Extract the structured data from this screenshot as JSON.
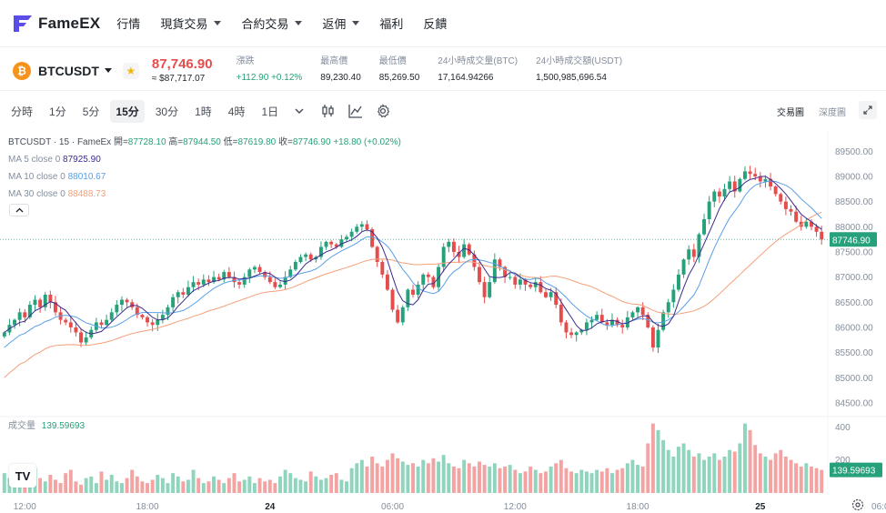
{
  "nav": {
    "logo": "FameEX",
    "items": [
      {
        "label": "行情",
        "dropdown": false
      },
      {
        "label": "現貨交易",
        "dropdown": true
      },
      {
        "label": "合約交易",
        "dropdown": true
      },
      {
        "label": "返佣",
        "dropdown": true
      },
      {
        "label": "福利",
        "dropdown": false
      },
      {
        "label": "反饋",
        "dropdown": false
      }
    ]
  },
  "ticker": {
    "coin_symbol": "₿",
    "pair": "BTCUSDT",
    "last_price": "87,746.90",
    "usd_price": "≈ $87,717.07",
    "stats": [
      {
        "label": "漲跌",
        "value": "+112.90 +0.12%",
        "positive": true
      },
      {
        "label": "最高價",
        "value": "89,230.40"
      },
      {
        "label": "最低價",
        "value": "85,269.50"
      },
      {
        "label": "24小時成交量(BTC)",
        "value": "17,164.94266"
      },
      {
        "label": "24小時成交額(USDT)",
        "value": "1,500,985,696.54"
      }
    ]
  },
  "toolbar": {
    "timeframes": [
      "分時",
      "1分",
      "5分",
      "15分",
      "30分",
      "1時",
      "4時",
      "1日"
    ],
    "active_timeframe": "15分",
    "view_trading": "交易圖",
    "view_depth": "深度圖"
  },
  "legend": {
    "symbol_line": "BTCUSDT · 15 · FameEx",
    "ohlc": {
      "open_label": "開=",
      "open": "87728.10",
      "high_label": "高=",
      "high": "87944.50",
      "low_label": "低=",
      "low": "87619.80",
      "close_label": "收=",
      "close": "87746.90",
      "change": "+18.80 (+0.02%)"
    },
    "ma": [
      {
        "label": "MA 5 close 0",
        "value": "87925.90",
        "color": "#3d2b8f"
      },
      {
        "label": "MA 10 close 0",
        "value": "88010.67",
        "color": "#5aa0e6"
      },
      {
        "label": "MA 30 close 0",
        "value": "88488.73",
        "color": "#f4a07a"
      }
    ],
    "volume_label": "成交量",
    "volume_value": "139.59693"
  },
  "chart_data": {
    "type": "candlestick",
    "price_axis": {
      "ticks": [
        "89500.00",
        "89000.00",
        "88500.00",
        "88000.00",
        "87500.00",
        "87000.00",
        "86500.00",
        "86000.00",
        "85500.00",
        "85000.00",
        "84500.00"
      ],
      "range": [
        84300,
        89650
      ]
    },
    "volume_axis": {
      "ticks": [
        "400",
        "200"
      ],
      "range": [
        0,
        440
      ]
    },
    "time_labels": [
      {
        "label": "12:00",
        "index": 4
      },
      {
        "label": "18:00",
        "index": 28
      },
      {
        "label": "24",
        "index": 52
      },
      {
        "label": "06:00",
        "index": 76
      },
      {
        "label": "12:00",
        "index": 100
      },
      {
        "label": "18:00",
        "index": 124
      },
      {
        "label": "25",
        "index": 148
      },
      {
        "label": "06:00",
        "index": 172
      }
    ],
    "current_price_label": "87746.90",
    "current_volume_label": "139.59693",
    "up_color": "#26a17b",
    "down_color": "#e54d4d",
    "close": [
      85900,
      86050,
      86150,
      86300,
      86200,
      86450,
      86550,
      86400,
      86650,
      86500,
      86300,
      86150,
      86100,
      86000,
      85900,
      85700,
      85800,
      85950,
      86100,
      86050,
      86150,
      86300,
      86450,
      86550,
      86500,
      86400,
      86250,
      86200,
      86100,
      86050,
      86150,
      86250,
      86400,
      86600,
      86700,
      86650,
      86800,
      86900,
      86850,
      86950,
      86900,
      87000,
      86950,
      87100,
      87000,
      86900,
      86850,
      87000,
      87150,
      87200,
      87100,
      87000,
      86900,
      86800,
      86850,
      87000,
      87150,
      87300,
      87400,
      87450,
      87350,
      87400,
      87600,
      87700,
      87650,
      87600,
      87750,
      87800,
      87900,
      88000,
      88050,
      87950,
      87600,
      87300,
      87050,
      86750,
      86350,
      86100,
      86400,
      86750,
      86650,
      86850,
      87050,
      87000,
      86800,
      87200,
      87600,
      87700,
      87500,
      87400,
      87650,
      87450,
      87200,
      86900,
      86600,
      86900,
      87350,
      87200,
      87000,
      87000,
      86850,
      86950,
      86850,
      86800,
      86900,
      86700,
      86600,
      86700,
      86450,
      86100,
      85900,
      85850,
      85900,
      85950,
      86100,
      86150,
      86250,
      86100,
      86050,
      86150,
      86050,
      86000,
      86200,
      86300,
      86400,
      86250,
      86000,
      85600,
      85950,
      86300,
      86500,
      86750,
      87050,
      87350,
      87550,
      87400,
      87850,
      88150,
      88500,
      88700,
      88600,
      88750,
      88900,
      88700,
      88950,
      89100,
      89050,
      89000,
      88900,
      88950,
      88800,
      88650,
      88500,
      88350,
      88300,
      88100,
      88000,
      88100,
      88000,
      87900,
      87746.9
    ],
    "volume": [
      120,
      90,
      140,
      60,
      100,
      80,
      150,
      90,
      70,
      110,
      80,
      60,
      120,
      140,
      70,
      50,
      90,
      100,
      60,
      130,
      80,
      110,
      70,
      60,
      90,
      140,
      100,
      70,
      60,
      80,
      110,
      90,
      60,
      120,
      100,
      70,
      80,
      140,
      90,
      60,
      70,
      100,
      80,
      60,
      90,
      120,
      70,
      80,
      100,
      60,
      90,
      70,
      80,
      60,
      100,
      140,
      120,
      90,
      80,
      70,
      130,
      100,
      80,
      90,
      110,
      120,
      80,
      70,
      150,
      180,
      200,
      160,
      220,
      180,
      160,
      200,
      240,
      210,
      190,
      170,
      180,
      160,
      200,
      180,
      210,
      190,
      230,
      180,
      160,
      150,
      200,
      180,
      160,
      190,
      170,
      160,
      180,
      150,
      160,
      170,
      140,
      120,
      130,
      160,
      140,
      120,
      130,
      160,
      180,
      200,
      150,
      130,
      120,
      140,
      130,
      120,
      140,
      130,
      150,
      120,
      140,
      150,
      180,
      200,
      170,
      160,
      300,
      420,
      380,
      320,
      260,
      220,
      280,
      300,
      260,
      220,
      240,
      200,
      220,
      240,
      200,
      220,
      260,
      250,
      300,
      420,
      380,
      290,
      240,
      220,
      200,
      240,
      260,
      220,
      200,
      180,
      160,
      180,
      160,
      150,
      139.6
    ]
  },
  "icons": {
    "candle_icon": "candle-type-icon",
    "indicator_icon": "indicator-icon",
    "settings_icon": "gear-icon",
    "expand_icon": "expand-icon"
  }
}
